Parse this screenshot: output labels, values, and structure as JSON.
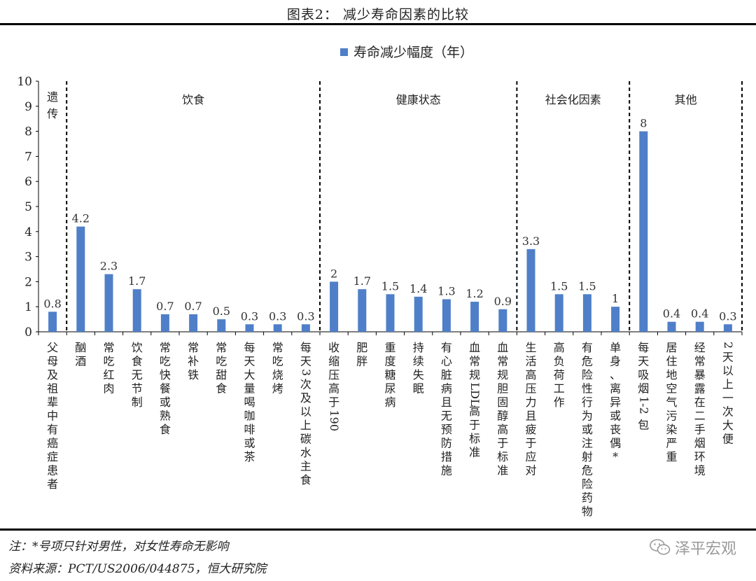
{
  "header": {
    "title": "图表2：  减少寿命因素的比较"
  },
  "chart_data": {
    "type": "bar",
    "legend": {
      "label": "寿命减少幅度（年）",
      "position": "top-center"
    },
    "color": "#4f7fc8",
    "ylim": [
      0,
      10
    ],
    "yticks": [
      0,
      1,
      2,
      3,
      4,
      5,
      6,
      7,
      8,
      9,
      10
    ],
    "groups": [
      {
        "label": "遗传",
        "start": 0,
        "end": 0,
        "vertical": true
      },
      {
        "label": "饮食",
        "start": 1,
        "end": 9
      },
      {
        "label": "健康状态",
        "start": 10,
        "end": 16
      },
      {
        "label": "社会化因素",
        "start": 17,
        "end": 20
      },
      {
        "label": "其他",
        "start": 21,
        "end": 24
      }
    ],
    "categories": [
      "父母及祖辈中有癌症患者",
      "酗酒",
      "常吃红肉",
      "饮食无节制",
      "常吃快餐或熟食",
      "常补铁",
      "常吃甜食",
      "每天大量喝咖啡或茶",
      "常吃烧烤",
      "每天3次及以上碳水主食",
      "收缩压高于190",
      "肥胖",
      "重度糖尿病",
      "持续失眠",
      "有心脏病且无预防措施",
      "血常规LDL高于标准",
      "血常规胆固醇高于标准",
      "生活高压力且疲于应对",
      "高负荷工作",
      "有危险性行为或注射危险药物",
      "单身、离异或丧偶*",
      "每天吸烟1-2包",
      "居住地空气污染严重",
      "经常暴露在二手烟环境",
      "2天以上一次大便"
    ],
    "values": [
      0.8,
      4.2,
      2.3,
      1.7,
      0.7,
      0.7,
      0.5,
      0.3,
      0.3,
      0.3,
      2,
      1.7,
      1.5,
      1.4,
      1.3,
      1.2,
      0.9,
      3.3,
      1.5,
      1.5,
      1,
      8,
      0.4,
      0.4,
      0.3
    ],
    "data_labels": [
      "0.8",
      "4.2",
      "2.3",
      "1.7",
      "0.7",
      "0.7",
      "0.5",
      "0.3",
      "0.3",
      "0.3",
      "2",
      "1.7",
      "1.5",
      "1.4",
      "1.3",
      "1.2",
      "0.9",
      "3.3",
      "1.5",
      "1.5",
      "1",
      "8",
      "0.4",
      "0.4",
      "0.3"
    ]
  },
  "footer": {
    "note": "注：*号项只针对男性，对女性寿命无影响",
    "source": "资料来源：PCT/US2006/044875，恒大研究院",
    "watermark": "泽平宏观",
    "watermark_icon": "wechat-icon"
  }
}
